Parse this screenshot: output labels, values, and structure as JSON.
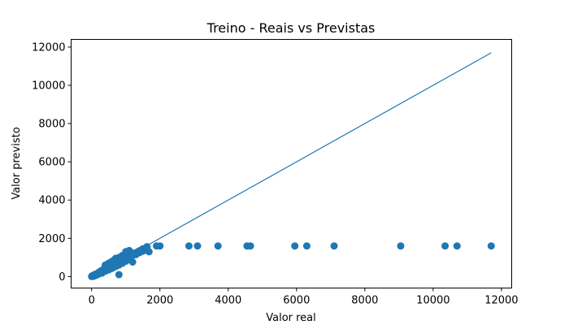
{
  "chart_data": {
    "type": "scatter",
    "title": "Treino - Reais vs Previstas",
    "xlabel": "Valor real",
    "ylabel": "Valor previsto",
    "xlim": [
      -600,
      12300
    ],
    "ylim": [
      -600,
      12400
    ],
    "xticks": [
      0,
      2000,
      4000,
      6000,
      8000,
      10000,
      12000
    ],
    "yticks": [
      0,
      2000,
      4000,
      6000,
      8000,
      10000,
      12000
    ],
    "grid": false,
    "reference_line": {
      "name": "",
      "x": [
        0,
        11700
      ],
      "y": [
        0,
        11700
      ]
    },
    "series": [
      {
        "name": "",
        "color": "#1f77b4",
        "points": [
          [
            0,
            0
          ],
          [
            10,
            30
          ],
          [
            20,
            10
          ],
          [
            30,
            50
          ],
          [
            40,
            20
          ],
          [
            50,
            60
          ],
          [
            60,
            40
          ],
          [
            70,
            90
          ],
          [
            80,
            30
          ],
          [
            90,
            70
          ],
          [
            100,
            100
          ],
          [
            110,
            60
          ],
          [
            120,
            120
          ],
          [
            130,
            80
          ],
          [
            140,
            140
          ],
          [
            150,
            90
          ],
          [
            160,
            150
          ],
          [
            170,
            110
          ],
          [
            180,
            180
          ],
          [
            190,
            130
          ],
          [
            200,
            200
          ],
          [
            210,
            150
          ],
          [
            220,
            230
          ],
          [
            230,
            170
          ],
          [
            240,
            250
          ],
          [
            250,
            190
          ],
          [
            260,
            270
          ],
          [
            270,
            210
          ],
          [
            280,
            300
          ],
          [
            290,
            230
          ],
          [
            300,
            320
          ],
          [
            310,
            250
          ],
          [
            320,
            340
          ],
          [
            330,
            270
          ],
          [
            340,
            360
          ],
          [
            350,
            300
          ],
          [
            360,
            380
          ],
          [
            370,
            320
          ],
          [
            380,
            400
          ],
          [
            390,
            340
          ],
          [
            400,
            430
          ],
          [
            410,
            360
          ],
          [
            420,
            450
          ],
          [
            430,
            390
          ],
          [
            440,
            470
          ],
          [
            450,
            410
          ],
          [
            460,
            500
          ],
          [
            470,
            430
          ],
          [
            480,
            520
          ],
          [
            490,
            450
          ],
          [
            500,
            540
          ],
          [
            520,
            480
          ],
          [
            540,
            580
          ],
          [
            560,
            510
          ],
          [
            580,
            610
          ],
          [
            600,
            540
          ],
          [
            620,
            650
          ],
          [
            640,
            580
          ],
          [
            660,
            690
          ],
          [
            680,
            620
          ],
          [
            700,
            730
          ],
          [
            720,
            660
          ],
          [
            740,
            770
          ],
          [
            760,
            700
          ],
          [
            780,
            810
          ],
          [
            800,
            740
          ],
          [
            820,
            850
          ],
          [
            840,
            780
          ],
          [
            860,
            890
          ],
          [
            880,
            820
          ],
          [
            900,
            930
          ],
          [
            920,
            860
          ],
          [
            940,
            970
          ],
          [
            960,
            900
          ],
          [
            980,
            1010
          ],
          [
            1000,
            950
          ],
          [
            1030,
            1060
          ],
          [
            1060,
            990
          ],
          [
            1090,
            1110
          ],
          [
            1120,
            1040
          ],
          [
            1150,
            1160
          ],
          [
            1180,
            1090
          ],
          [
            1210,
            1200
          ],
          [
            1240,
            1140
          ],
          [
            1270,
            1240
          ],
          [
            1300,
            1200
          ],
          [
            1350,
            1290
          ],
          [
            1400,
            1250
          ],
          [
            1450,
            1380
          ],
          [
            1500,
            1330
          ],
          [
            1550,
            1450
          ],
          [
            1620,
            1560
          ],
          [
            1680,
            1300
          ],
          [
            200,
            130
          ],
          [
            300,
            180
          ],
          [
            400,
            280
          ],
          [
            500,
            350
          ],
          [
            600,
            430
          ],
          [
            700,
            520
          ],
          [
            800,
            600
          ],
          [
            900,
            700
          ],
          [
            1000,
            800
          ],
          [
            1100,
            900
          ],
          [
            1200,
            760
          ],
          [
            800,
            100
          ],
          [
            1100,
            1360
          ],
          [
            1200,
            1200
          ],
          [
            1300,
            1150
          ],
          [
            1400,
            1350
          ],
          [
            1500,
            1450
          ],
          [
            1600,
            1500
          ],
          [
            1000,
            1300
          ],
          [
            900,
            1100
          ],
          [
            800,
            1000
          ],
          [
            700,
            950
          ],
          [
            600,
            800
          ],
          [
            500,
            700
          ],
          [
            400,
            600
          ],
          [
            1900,
            1600
          ],
          [
            2000,
            1600
          ],
          [
            2850,
            1600
          ],
          [
            3100,
            1600
          ],
          [
            3700,
            1600
          ],
          [
            4550,
            1600
          ],
          [
            4650,
            1600
          ],
          [
            5950,
            1600
          ],
          [
            6300,
            1600
          ],
          [
            7100,
            1600
          ],
          [
            9050,
            1600
          ],
          [
            10350,
            1600
          ],
          [
            10700,
            1600
          ],
          [
            11700,
            1600
          ]
        ]
      }
    ]
  }
}
